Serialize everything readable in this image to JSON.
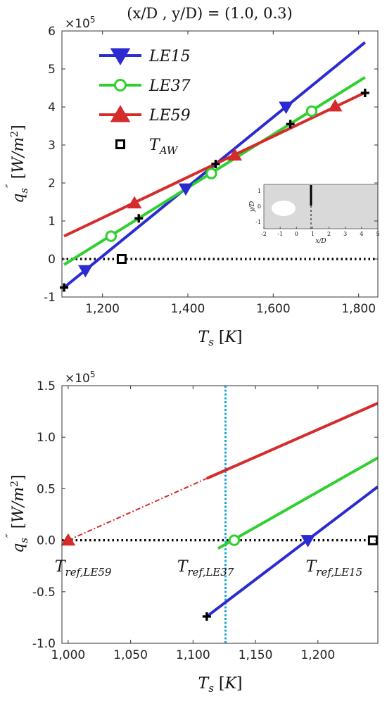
{
  "chart_data": [
    {
      "type": "line",
      "title": "(x/D , y/D) = (1.0, 0.3)",
      "multiplier": "×10",
      "multiplier_exp": "5",
      "xlabel": "T_s [K]",
      "ylabel": "q''_s [W/m^2]",
      "xlim": [
        1105,
        1845
      ],
      "ylim": [
        -100000,
        600000
      ],
      "xticks": [
        1200,
        1400,
        1600,
        1800
      ],
      "xtick_labels": [
        "1,200",
        "1,400",
        "1,600",
        "1,800"
      ],
      "yticks": [
        -100000,
        0,
        100000,
        200000,
        300000,
        400000,
        500000,
        600000
      ],
      "ytick_labels": [
        "-1",
        "0",
        "1",
        "2",
        "3",
        "4",
        "5",
        "6"
      ],
      "legend_position": "top-left",
      "series": [
        {
          "name": "LE15",
          "color": "#2b2bd1",
          "marker": "triangle-down",
          "line": [
            [
              1110,
              -75000
            ],
            [
              1815,
              570000
            ]
          ],
          "x": [
            1160,
            1395,
            1630
          ],
          "y": [
            -30000,
            185000,
            400000
          ]
        },
        {
          "name": "LE37",
          "color": "#2fd02f",
          "marker": "circle",
          "line": [
            [
              1110,
              -15000
            ],
            [
              1815,
              478000
            ]
          ],
          "x": [
            1220,
            1455,
            1690
          ],
          "y": [
            60000,
            225000,
            389000
          ]
        },
        {
          "name": "LE59",
          "color": "#d62b2b",
          "marker": "triangle-up",
          "line": [
            [
              1110,
              60000
            ],
            [
              1815,
              438000
            ]
          ],
          "x": [
            1275,
            1510,
            1745
          ],
          "y": [
            147000,
            273000,
            402000
          ]
        },
        {
          "name": "T_AW",
          "color": "#000000",
          "marker": "square",
          "x": [
            1245
          ],
          "y": [
            0
          ]
        }
      ],
      "crosses": {
        "x": [
          1110,
          1285,
          1465,
          1640,
          1815
        ],
        "y": [
          -75000,
          107000,
          250000,
          355000,
          437000
        ]
      },
      "inset": {
        "xlabel": "x/D",
        "ylabel": "y/D",
        "xticks": [
          "-2",
          "-1",
          "0",
          "1",
          "2",
          "3",
          "4",
          "5"
        ],
        "yticks": [
          "1",
          "0",
          "-1"
        ]
      }
    },
    {
      "type": "line",
      "multiplier": "×10",
      "multiplier_exp": "5",
      "xlabel": "T_s [K]",
      "ylabel": "q''_s [W/m^2]",
      "xlim": [
        995,
        1248
      ],
      "ylim": [
        -100000,
        150000
      ],
      "xticks": [
        1000,
        1050,
        1100,
        1150,
        1200
      ],
      "xtick_labels": [
        "1,000",
        "1,050",
        "1,100",
        "1,150",
        "1,200"
      ],
      "yticks": [
        -100000,
        -50000,
        0,
        50000,
        100000,
        150000
      ],
      "ytick_labels": [
        "-1.0",
        "-0.5",
        "0.0",
        "0.5",
        "1.0",
        "1.5"
      ],
      "vertical_line_x": 1126,
      "series": [
        {
          "name": "LE15",
          "color": "#2b2bd1",
          "marker": "triangle-down",
          "line": [
            [
              1111,
              -74000
            ],
            [
              1248,
              52000
            ]
          ],
          "x": [
            1192
          ],
          "y": [
            0
          ]
        },
        {
          "name": "LE37",
          "color": "#2fd02f",
          "marker": "circle",
          "line": [
            [
              1120,
              -8000
            ],
            [
              1248,
              80000
            ]
          ],
          "x": [
            1133
          ],
          "y": [
            0
          ]
        },
        {
          "name": "LE59",
          "color": "#d62b2b",
          "marker": "triangle-up",
          "line": [
            [
              1111,
              60000
            ],
            [
              1248,
              133000
            ]
          ],
          "extrapolation": [
            [
              1000,
              0
            ],
            [
              1111,
              60000
            ]
          ],
          "x": [
            1000
          ],
          "y": [
            0
          ]
        },
        {
          "name": "T_AW",
          "color": "#000000",
          "marker": "square",
          "x": [
            1244
          ],
          "y": [
            0
          ]
        }
      ],
      "crosses": {
        "x": [
          1111
        ],
        "y": [
          -74000
        ]
      },
      "annotations": [
        {
          "label": "T_ref,LE59",
          "at": 1012
        },
        {
          "label": "T_ref,LE37",
          "at": 1110
        },
        {
          "label": "T_ref,LE15",
          "at": 1213
        }
      ]
    }
  ]
}
